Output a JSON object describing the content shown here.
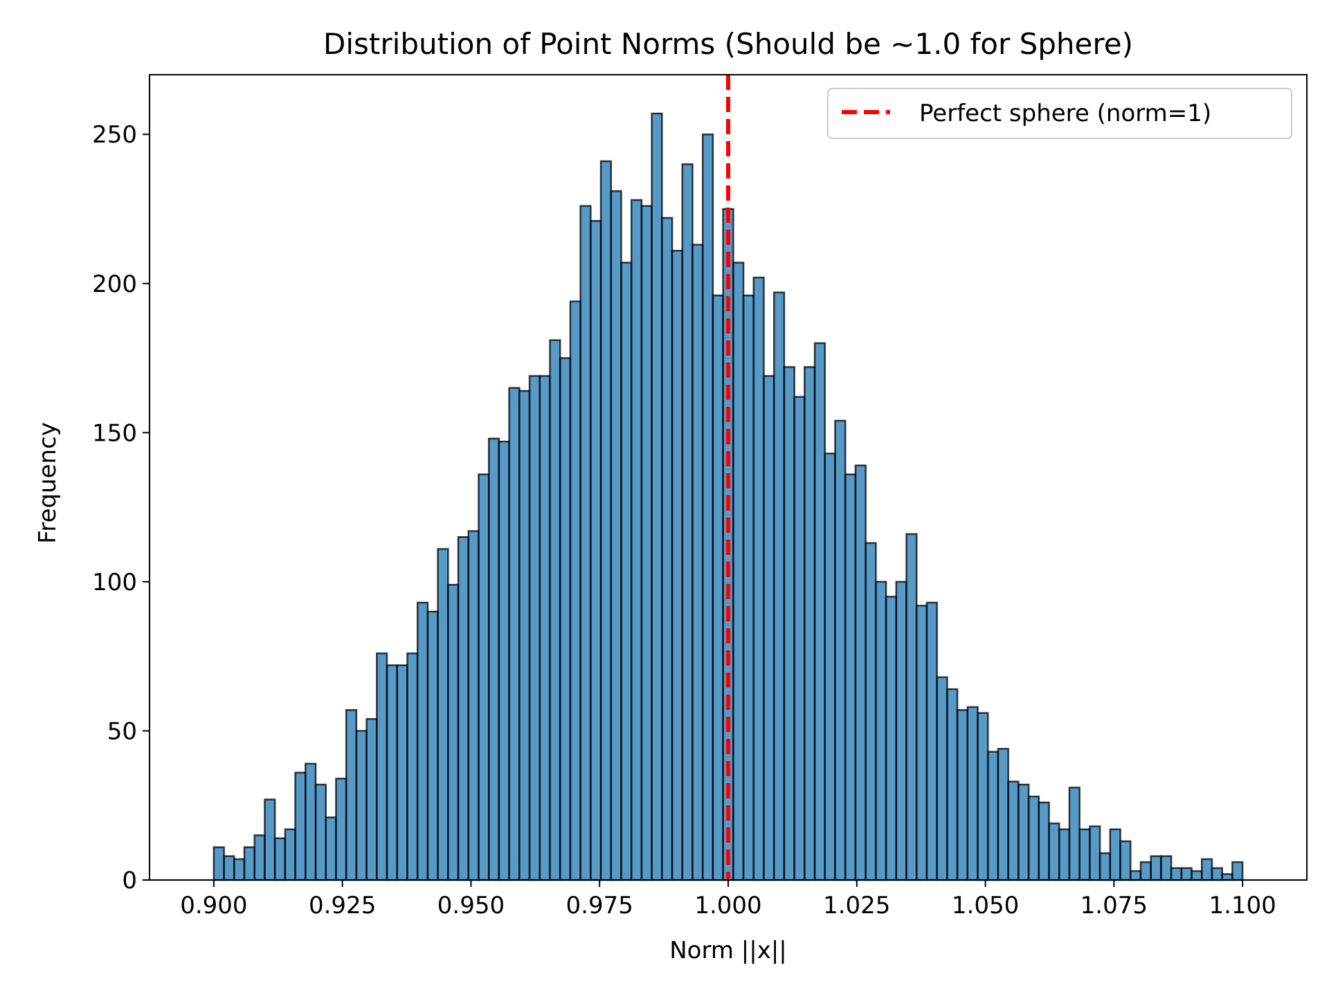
{
  "chart_data": {
    "type": "bar",
    "title": "Distribution of Point Norms (Should be ~1.0 for Sphere)",
    "xlabel": "Norm ||x||",
    "ylabel": "Frequency",
    "xlim": [
      0.8875,
      1.1125
    ],
    "ylim": [
      0,
      270
    ],
    "x_ticks": [
      "0.900",
      "0.925",
      "0.950",
      "0.975",
      "1.000",
      "1.025",
      "1.050",
      "1.075",
      "1.100"
    ],
    "x_tick_values": [
      0.9,
      0.925,
      0.95,
      0.975,
      1.0,
      1.025,
      1.05,
      1.075,
      1.1
    ],
    "y_ticks": [
      "0",
      "50",
      "100",
      "150",
      "200",
      "250"
    ],
    "y_tick_values": [
      0,
      50,
      100,
      150,
      200,
      250
    ],
    "bin_range": [
      0.9,
      1.1
    ],
    "values": [
      11,
      8,
      7,
      11,
      15,
      27,
      14,
      17,
      36,
      39,
      32,
      21,
      34,
      57,
      50,
      54,
      76,
      72,
      72,
      76,
      93,
      90,
      111,
      99,
      115,
      117,
      136,
      148,
      147,
      165,
      164,
      169,
      169,
      181,
      175,
      194,
      226,
      221,
      241,
      231,
      207,
      228,
      226,
      257,
      222,
      211,
      240,
      213,
      250,
      196,
      225,
      207,
      196,
      202,
      169,
      197,
      172,
      162,
      172,
      180,
      143,
      154,
      136,
      139,
      113,
      100,
      95,
      100,
      116,
      92,
      93,
      68,
      64,
      57,
      58,
      56,
      43,
      44,
      33,
      32,
      28,
      26,
      19,
      17,
      31,
      17,
      18,
      9,
      17,
      13,
      3,
      6,
      8,
      8,
      4,
      4,
      3,
      7,
      4,
      2,
      6
    ],
    "bar_color": "#1f77b4",
    "bar_edge_color": "#000000",
    "reference_line": {
      "x": 1.0,
      "label": "Perfect sphere (norm=1)",
      "color": "#ff0000",
      "style": "dashed"
    },
    "legend_position": "upper right",
    "grid": false
  }
}
